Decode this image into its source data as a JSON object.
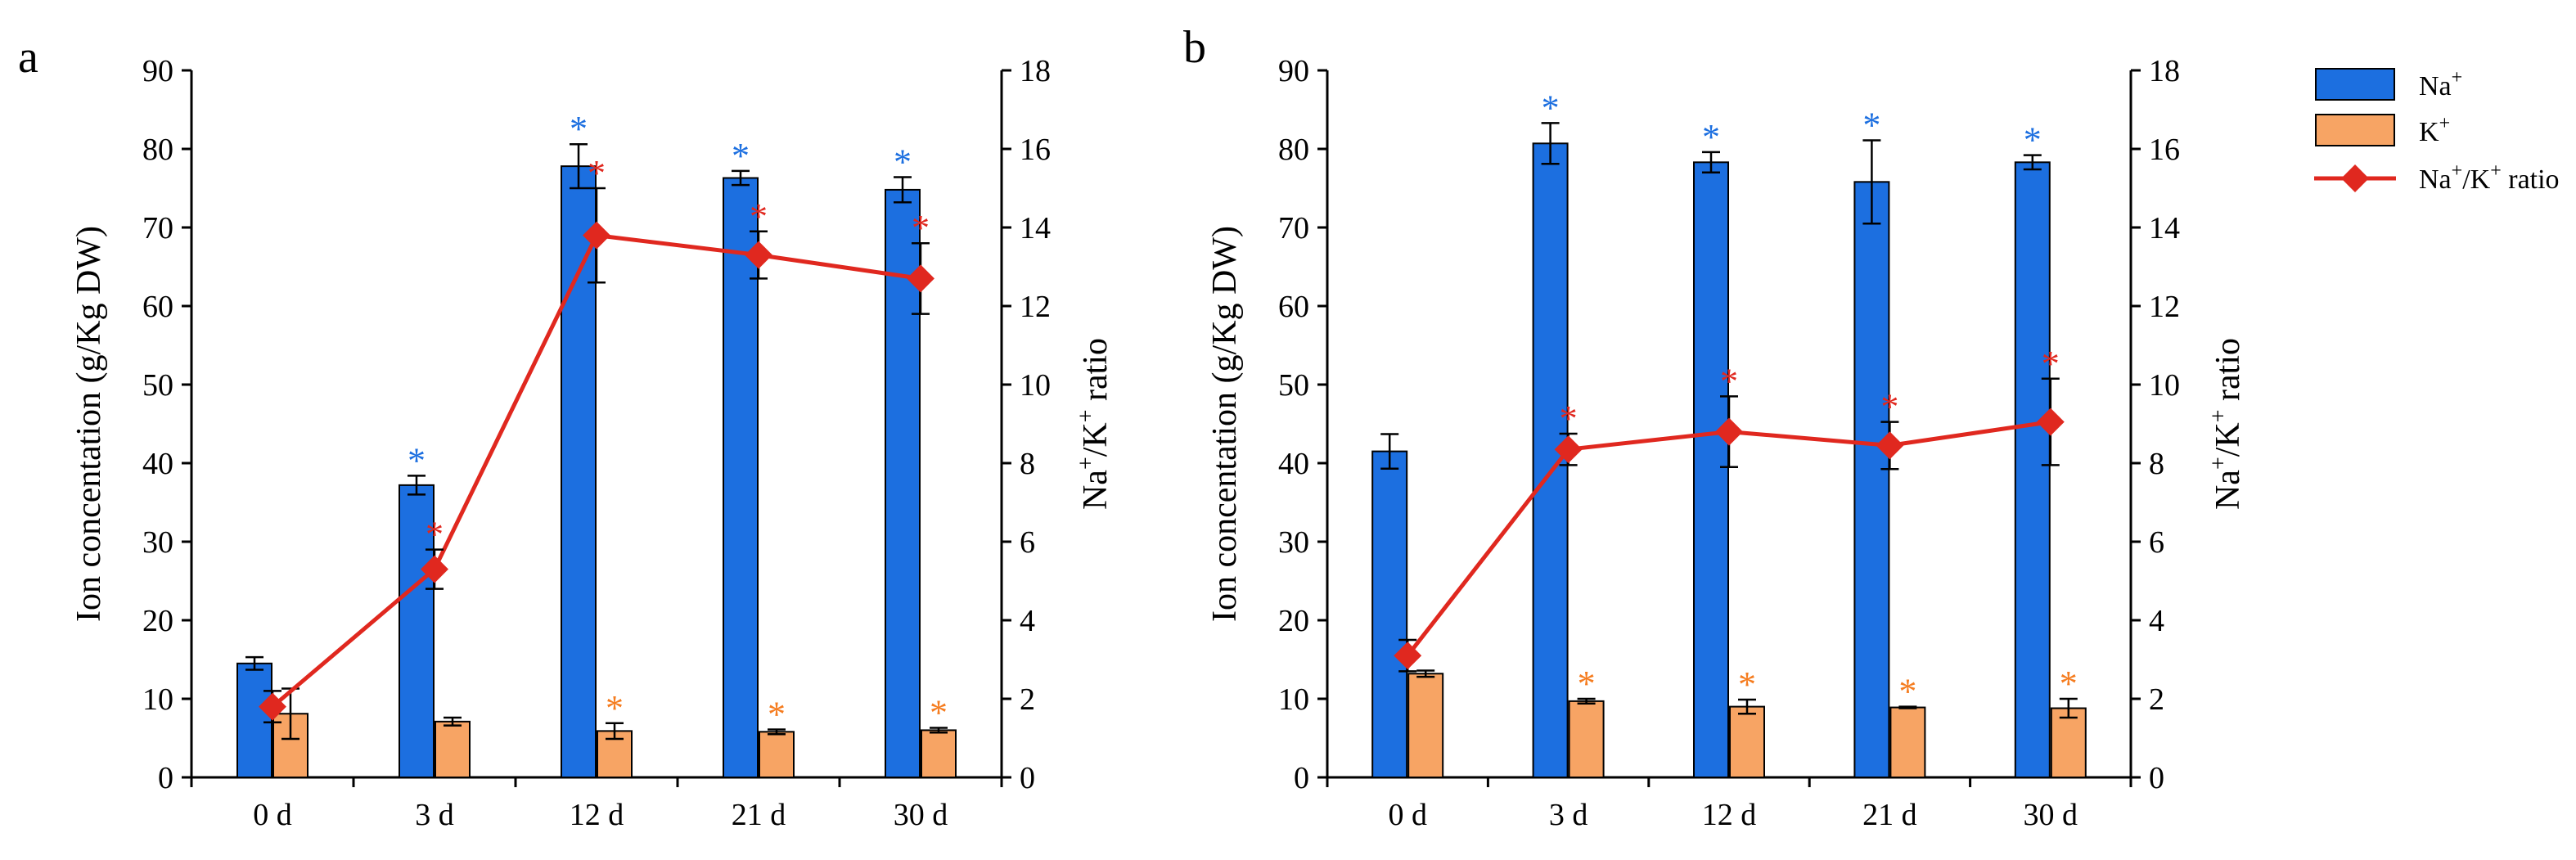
{
  "colors": {
    "na": "#1c6fe0",
    "k": "#f7a464",
    "ratio": "#e0281f",
    "star_na": "#1c6fe0",
    "star_k": "#f57c1f",
    "star_ratio": "#e0281f"
  },
  "legend": {
    "na_label": "Na",
    "na_sup": "+",
    "k_label": "K",
    "k_sup": "+",
    "ratio_label_a": "Na",
    "ratio_sup_a": "+",
    "ratio_label_b": "/K",
    "ratio_sup_b": "+",
    "ratio_label_c": " ratio"
  },
  "star_symbol": "*",
  "chart_data": [
    {
      "panel": "a",
      "type": "bar",
      "categories": [
        "0 d",
        "3 d",
        "12 d",
        "21 d",
        "30 d"
      ],
      "ylabel": "Ion concentation (g/Kg DW)",
      "y2label_parts": {
        "a": "Na",
        "sa": "+",
        "b": "/K",
        "sb": "+",
        "c": " ratio"
      },
      "ylim": [
        0,
        90
      ],
      "y2lim": [
        0,
        18
      ],
      "yticks": [
        "0",
        "10",
        "20",
        "30",
        "40",
        "50",
        "60",
        "70",
        "80",
        "90"
      ],
      "y2ticks": [
        "0",
        "2",
        "4",
        "6",
        "8",
        "10",
        "12",
        "14",
        "16",
        "18"
      ],
      "series": [
        {
          "name": "Na+",
          "kind": "bar",
          "axis": "left",
          "values": [
            14.5,
            37.2,
            77.8,
            76.3,
            74.8
          ],
          "errors": [
            0.8,
            1.2,
            2.8,
            0.9,
            1.6
          ],
          "stars": [
            false,
            true,
            true,
            true,
            true
          ]
        },
        {
          "name": "K+",
          "kind": "bar",
          "axis": "left",
          "values": [
            8.1,
            7.1,
            5.9,
            5.8,
            6.0
          ],
          "errors": [
            3.2,
            0.5,
            1.0,
            0.3,
            0.3
          ],
          "stars": [
            false,
            false,
            true,
            true,
            true
          ]
        },
        {
          "name": "Na+/K+ ratio",
          "kind": "line",
          "axis": "right",
          "values": [
            1.8,
            5.3,
            13.8,
            13.3,
            12.7
          ],
          "errors": [
            0.4,
            0.5,
            1.2,
            0.6,
            0.9
          ],
          "stars": [
            false,
            true,
            true,
            true,
            true
          ]
        }
      ]
    },
    {
      "panel": "b",
      "type": "bar",
      "categories": [
        "0 d",
        "3 d",
        "12 d",
        "21 d",
        "30 d"
      ],
      "ylabel": "Ion concentation (g/Kg DW)",
      "y2label_parts": {
        "a": "Na",
        "sa": "+",
        "b": "/K",
        "sb": "+",
        "c": " ratio"
      },
      "ylim": [
        0,
        90
      ],
      "y2lim": [
        0,
        18
      ],
      "yticks": [
        "0",
        "10",
        "20",
        "30",
        "40",
        "50",
        "60",
        "70",
        "80",
        "90"
      ],
      "y2ticks": [
        "0",
        "2",
        "4",
        "6",
        "8",
        "10",
        "12",
        "14",
        "16",
        "18"
      ],
      "series": [
        {
          "name": "Na+",
          "kind": "bar",
          "axis": "left",
          "values": [
            41.5,
            80.7,
            78.3,
            75.8,
            78.3
          ],
          "errors": [
            2.2,
            2.6,
            1.3,
            5.3,
            0.9
          ],
          "stars": [
            false,
            true,
            true,
            true,
            true
          ]
        },
        {
          "name": "K+",
          "kind": "bar",
          "axis": "left",
          "values": [
            13.2,
            9.7,
            9.0,
            8.9,
            8.8
          ],
          "errors": [
            0.4,
            0.3,
            0.9,
            0.1,
            1.2
          ],
          "stars": [
            false,
            true,
            true,
            true,
            true
          ]
        },
        {
          "name": "Na+/K+ ratio",
          "kind": "line",
          "axis": "right",
          "values": [
            3.1,
            8.35,
            8.8,
            8.45,
            9.05
          ],
          "errors": [
            0.4,
            0.4,
            0.9,
            0.6,
            1.1
          ],
          "stars": [
            false,
            true,
            true,
            true,
            true
          ]
        }
      ]
    }
  ]
}
